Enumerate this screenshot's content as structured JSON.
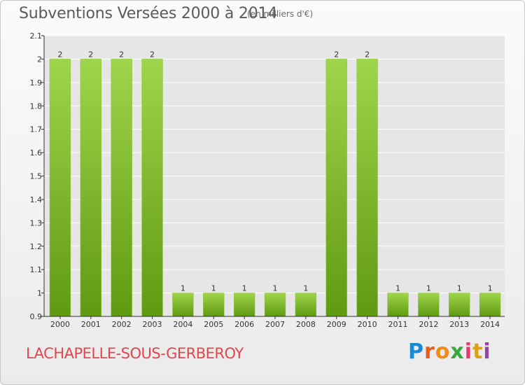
{
  "header": {
    "title": "Subventions Versées 2000 à 2014",
    "subtitle": "(en milliers d'€)"
  },
  "footer": {
    "commune": "LACHAPELLE-SOUS-GERBEROY"
  },
  "logo": {
    "text": "Proxiti",
    "letters": [
      "P",
      "r",
      "o",
      "x",
      "i",
      "t",
      "i"
    ],
    "colors": [
      "#1c8ad0",
      "#e35c1c",
      "#f08a1a",
      "#3aa63c",
      "#e23b6f",
      "#d9a11a",
      "#9b3fb0"
    ]
  },
  "colors": {
    "bar_light": "#9fd54a",
    "bar_dark": "#5f9a12",
    "grid": "#ffffff",
    "axis": "#333333",
    "plot_bg": "#e6e6e6"
  },
  "chart_data": {
    "type": "bar",
    "title": "Subventions Versées 2000 à 2014",
    "subtitle": "(en milliers d'€)",
    "categories": [
      "2000",
      "2001",
      "2002",
      "2003",
      "2004",
      "2005",
      "2006",
      "2007",
      "2008",
      "2009",
      "2010",
      "2011",
      "2012",
      "2013",
      "2014"
    ],
    "values": [
      2,
      2,
      2,
      2,
      1,
      1,
      1,
      1,
      1,
      2,
      2,
      1,
      1,
      1,
      1
    ],
    "ylim": [
      0.9,
      2.1
    ],
    "yticks": [
      0.9,
      1,
      1.1,
      1.2,
      1.3,
      1.4,
      1.5,
      1.6,
      1.7,
      1.8,
      1.9,
      2,
      2.1
    ],
    "ytick_labels": [
      "0.9",
      "1",
      "1.1",
      "1.2",
      "1.3",
      "1.4",
      "1.5",
      "1.6",
      "1.7",
      "1.8",
      "1.9",
      "2",
      "2.1"
    ],
    "data_labels": [
      "2",
      "2",
      "2",
      "2",
      "1",
      "1",
      "1",
      "1",
      "1",
      "2",
      "2",
      "1",
      "1",
      "1",
      "1"
    ],
    "grid": true,
    "legend": "none",
    "xlabel": "",
    "ylabel": ""
  }
}
